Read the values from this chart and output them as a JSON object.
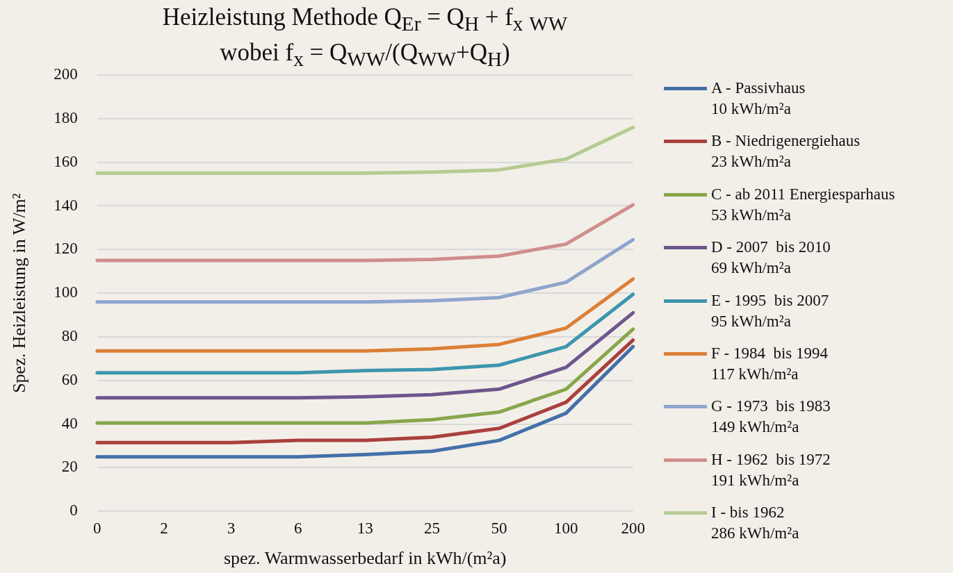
{
  "chart_data": {
    "type": "line",
    "title": "Heizleistung Methode Q$_{Er}$ = Q$_{H}$ + f$_{x}$      $_{WW}$\nwobei f$_{x}$ = Q$_{WW}$/(Q$_{WW}$+Q$_{H}$)",
    "xlabel": "spez. Warmwasserbedarf in kWh/(m²a)",
    "ylabel": "Spez. Heizleistung in W/m²",
    "categories": [
      "0",
      "2",
      "3",
      "6",
      "13",
      "25",
      "50",
      "100",
      "200"
    ],
    "ylim": [
      0,
      200
    ],
    "yticks": [
      0,
      20,
      40,
      60,
      80,
      100,
      120,
      140,
      160,
      180,
      200
    ],
    "grid": "y",
    "legend": "right",
    "marker": "none",
    "line_style": "solid",
    "series": [
      {
        "name": "A - Passivhaus\n10 kWh/m²a",
        "color": "#4470a8",
        "values": [
          25,
          25,
          25,
          25,
          26,
          27.5,
          32.5,
          45,
          75.5
        ]
      },
      {
        "name": "B - Niedrigenergiehaus\n23 kWh/m²a",
        "color": "#a9403d",
        "values": [
          31.5,
          31.5,
          31.5,
          32.5,
          32.5,
          34,
          38,
          50,
          78.5
        ]
      },
      {
        "name": "C - ab 2011 Energiesparhaus\n53 kWh/m²a",
        "color": "#88a64a",
        "values": [
          40.5,
          40.5,
          40.5,
          40.5,
          40.5,
          42,
          45.5,
          56,
          83.5
        ]
      },
      {
        "name": "D - 2007  bis 2010\n69 kWh/m²a",
        "color": "#6d568c",
        "values": [
          52,
          52,
          52,
          52,
          52.5,
          53.5,
          56,
          66,
          91
        ]
      },
      {
        "name": "E - 1995  bis 2007\n95 kWh/m²a",
        "color": "#3d95ae",
        "values": [
          63.5,
          63.5,
          63.5,
          63.5,
          64.5,
          65,
          67,
          75.5,
          99.5
        ]
      },
      {
        "name": "F - 1984  bis 1994\n117 kWh/m²a",
        "color": "#db8036",
        "values": [
          73.5,
          73.5,
          73.5,
          73.5,
          73.5,
          74.5,
          76.5,
          84,
          106.5
        ]
      },
      {
        "name": "G - 1973  bis 1983\n149 kWh/m²a",
        "color": "#8ea5cc",
        "values": [
          96,
          96,
          96,
          96,
          96,
          96.5,
          98,
          105,
          124.5
        ]
      },
      {
        "name": "H - 1962  bis 1972\n191 kWh/m²a",
        "color": "#d08e8c",
        "values": [
          115,
          115,
          115,
          115,
          115,
          115.5,
          117,
          122.5,
          140.5
        ]
      },
      {
        "name": "I - bis 1962\n286 kWh/m²a",
        "color": "#b6cb93",
        "values": [
          155,
          155,
          155,
          155,
          155,
          155.5,
          156.5,
          161.5,
          176
        ]
      }
    ]
  }
}
